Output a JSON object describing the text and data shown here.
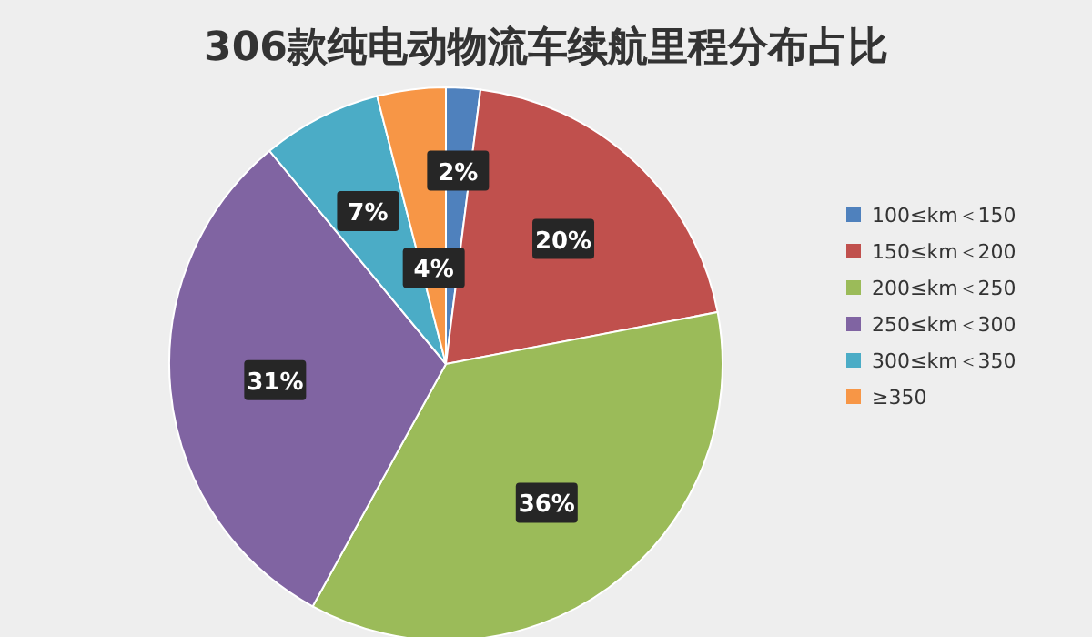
{
  "chart_data": {
    "type": "pie",
    "title": "306款纯电动物流车续航里程分布占比",
    "categories": [
      "100≤km＜150",
      "150≤km＜200",
      "200≤km＜250",
      "250≤km＜300",
      "300≤km＜350",
      "≥350"
    ],
    "values": [
      2,
      20,
      36,
      31,
      7,
      4
    ],
    "colors": [
      "#4f81bd",
      "#c0504d",
      "#9bbb59",
      "#8064a2",
      "#4bacc6",
      "#f79646"
    ],
    "value_labels": [
      "2%",
      "20%",
      "36%",
      "31%",
      "7%",
      "4%"
    ],
    "legend": "right"
  }
}
